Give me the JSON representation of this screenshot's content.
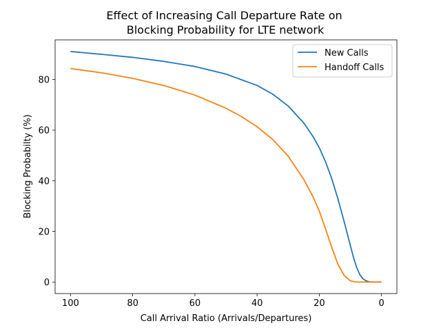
{
  "chart_data": {
    "type": "line",
    "title_line1": "Effect of Increasing Call Departure Rate on",
    "title_line2": "Blocking Probability for LTE network",
    "xlabel": "Call Arrival Ratio (Arrivals/Departures)",
    "ylabel": "Blocking Probabilty (%)",
    "xlim": [
      104.95,
      -4.95
    ],
    "ylim": [
      -4.55,
      95.6
    ],
    "x_inverted": true,
    "xticks": [
      100,
      80,
      60,
      40,
      20,
      0
    ],
    "yticks": [
      0,
      20,
      40,
      60,
      80
    ],
    "grid": false,
    "legend_position": "top-right",
    "series": [
      {
        "name": "New Calls",
        "color": "#1f77b4",
        "x": [
          100,
          90,
          80,
          70,
          60,
          50,
          40,
          35,
          30,
          25,
          22,
          20,
          18,
          16,
          14,
          12,
          10,
          9,
          8,
          7,
          6,
          5,
          4,
          3,
          2,
          1,
          0
        ],
        "y": [
          91.0,
          89.9,
          88.7,
          87.1,
          85.1,
          82.1,
          77.6,
          74.2,
          69.5,
          62.8,
          57.4,
          53.0,
          47.5,
          40.8,
          32.8,
          23.8,
          14.3,
          9.7,
          5.8,
          3.0,
          1.3,
          0.5,
          0.1,
          0.0,
          0.0,
          0.0,
          0.0
        ]
      },
      {
        "name": "Handoff Calls",
        "color": "#ff7f0e",
        "x": [
          100,
          90,
          80,
          70,
          60,
          50,
          45,
          40,
          35,
          30,
          25,
          22,
          20,
          18,
          16,
          14,
          12,
          10,
          9,
          8,
          6,
          4,
          2,
          0
        ],
        "y": [
          84.3,
          82.6,
          80.4,
          77.6,
          73.8,
          68.6,
          65.3,
          61.3,
          56.3,
          49.7,
          40.5,
          33.6,
          28.0,
          21.0,
          13.7,
          7.0,
          2.6,
          0.5,
          0.2,
          0.0,
          0.0,
          0.0,
          0.0,
          0.0
        ]
      }
    ]
  }
}
